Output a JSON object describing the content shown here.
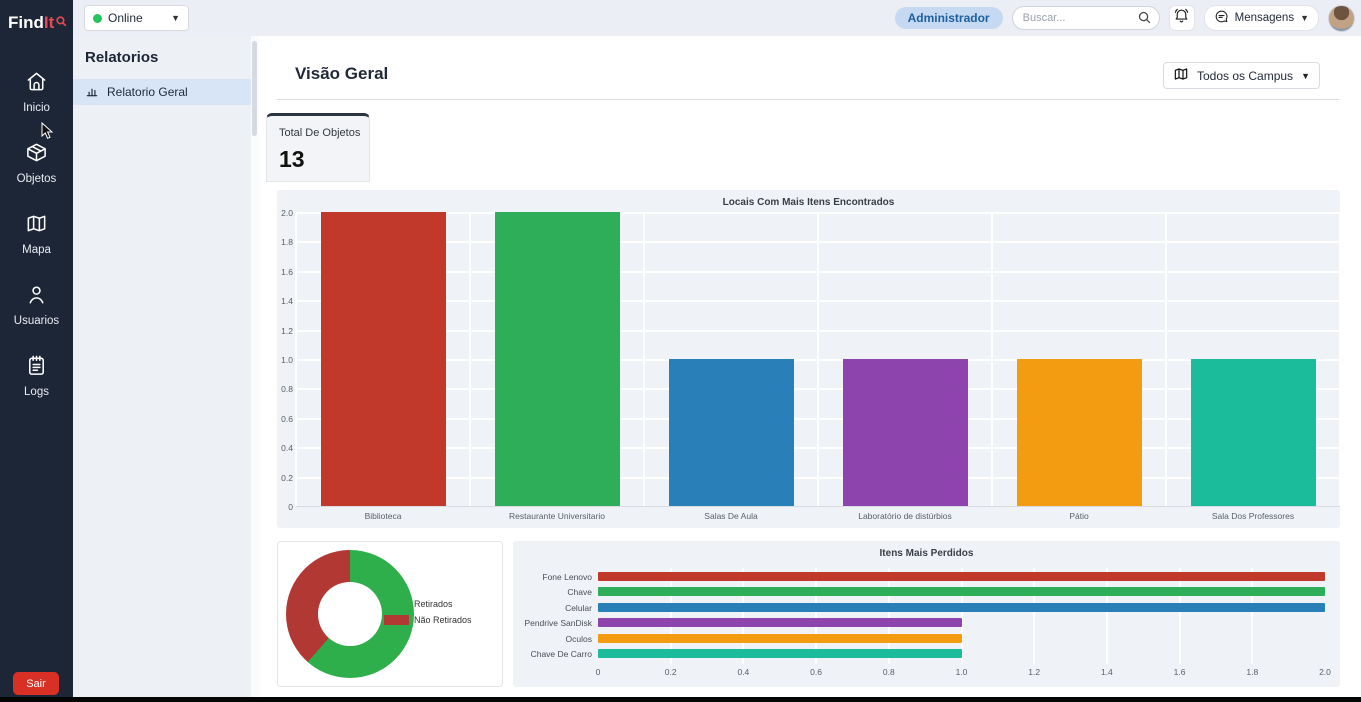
{
  "logo": {
    "find": "Find",
    "it": "It"
  },
  "topbar": {
    "status_select": {
      "value": "Online"
    },
    "admin_badge": "Administrador",
    "search_placeholder": "Buscar...",
    "messages_label": "Mensagens"
  },
  "sidebar": {
    "items": [
      {
        "label": "Inicio"
      },
      {
        "label": "Objetos"
      },
      {
        "label": "Mapa"
      },
      {
        "label": "Usuarios"
      },
      {
        "label": "Logs"
      }
    ],
    "logout_label": "Sair"
  },
  "reports_panel": {
    "title": "Relatorios",
    "items": [
      {
        "label": "Relatorio Geral",
        "active": true
      }
    ]
  },
  "main": {
    "title": "Visão Geral",
    "campus_select": "Todos os Campus",
    "summary_card": {
      "label": "Total De Objetos",
      "value": "13"
    }
  },
  "icons": {
    "logo_icon": "magnifier-icon",
    "nav": [
      "home-icon",
      "cube-icon",
      "map-icon",
      "user-icon",
      "notebook-icon"
    ],
    "topbar": [
      "search-icon",
      "bell-icon",
      "chat-icon",
      "chevron-down-icon"
    ],
    "report_item": "bar-chart-icon",
    "campus_select": "map-icon"
  },
  "colors": {
    "sidebar_bg": "#1d2636",
    "accent_red": "#e84855",
    "logout_red": "#d93025",
    "active_item_bg": "#d8e5f6",
    "badge_bg": "#c5d9f2",
    "badge_text": "#1e5f9e",
    "online_dot": "#22c55e",
    "chart_panel_bg": "#eff2f6"
  },
  "chart_data": [
    {
      "type": "bar",
      "orientation": "vertical",
      "title": "Locais Com Mais Itens Encontrados",
      "categories": [
        "Biblioteca",
        "Restaurante Universitario",
        "Salas De Aula",
        "Laboratório de distúrbios",
        "Pátio",
        "Sala Dos Professores"
      ],
      "values": [
        2,
        2,
        1,
        1,
        1,
        1
      ],
      "colors": [
        "#c0392b",
        "#2eae58",
        "#2980b9",
        "#8e44ad",
        "#f39c12",
        "#1abc9c"
      ],
      "ylim": [
        0,
        2
      ],
      "ytick_step": 0.2,
      "grid": true,
      "xlabel": "",
      "ylabel": "",
      "legend_position": "none"
    },
    {
      "type": "pie",
      "donut": true,
      "title": "",
      "slices": [
        {
          "label": "Retirados",
          "value": 8,
          "percent": 61.5,
          "color": "#2fae4c"
        },
        {
          "label": "Não Retirados",
          "value": 5,
          "percent": 38.5,
          "color": "#b23834"
        }
      ],
      "legend_position": "right"
    },
    {
      "type": "bar",
      "orientation": "horizontal",
      "title": "Itens Mais Perdidos",
      "categories": [
        "Fone Lenovo",
        "Chave",
        "Celular",
        "Pendrive SanDisk",
        "Oculos",
        "Chave De Carro"
      ],
      "values": [
        2,
        2,
        2,
        1,
        1,
        1
      ],
      "colors": [
        "#c0392b",
        "#2eae58",
        "#2980b9",
        "#8e44ad",
        "#f39c12",
        "#1abc9c"
      ],
      "xlim": [
        0,
        2
      ],
      "xtick_step": 0.2,
      "grid": true,
      "legend_position": "none"
    }
  ]
}
